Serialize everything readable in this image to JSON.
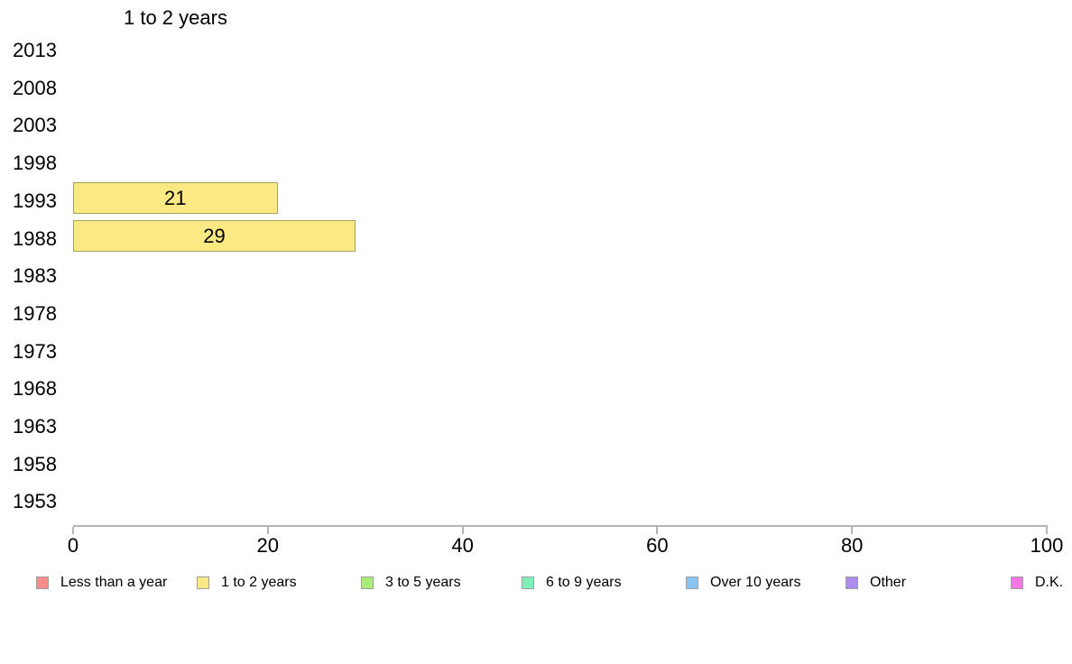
{
  "chart_data": {
    "type": "bar",
    "orientation": "horizontal",
    "title": "1 to 2 years",
    "categories": [
      "2013",
      "2008",
      "2003",
      "1998",
      "1993",
      "1988",
      "1983",
      "1978",
      "1973",
      "1968",
      "1963",
      "1958",
      "1953"
    ],
    "values": [
      null,
      null,
      null,
      null,
      21,
      29,
      null,
      null,
      null,
      null,
      null,
      null,
      null
    ],
    "bar_value_labels": [
      "",
      "",
      "",
      "",
      "21",
      "29",
      "",
      "",
      "",
      "",
      "",
      "",
      ""
    ],
    "xlabel": "",
    "ylabel": "",
    "xlim": [
      0,
      100
    ],
    "xticks": [
      0,
      20,
      40,
      60,
      80,
      100
    ],
    "grid": false,
    "bar_color": "#fbe983",
    "bar_border_color": "#a9a15f",
    "axis_color": "#b3b3b3",
    "legend_position": "bottom",
    "legend": [
      {
        "label": "Less than a year",
        "color": "#f98b8b"
      },
      {
        "label": "1 to 2 years",
        "color": "#fbe983"
      },
      {
        "label": "3 to 5 years",
        "color": "#a9ec79"
      },
      {
        "label": "6 to 9 years",
        "color": "#80efb7"
      },
      {
        "label": "Over 10 years",
        "color": "#8ac4f2"
      },
      {
        "label": "Other",
        "color": "#ab8df2"
      },
      {
        "label": "D.K.",
        "color": "#f277e3"
      }
    ]
  }
}
